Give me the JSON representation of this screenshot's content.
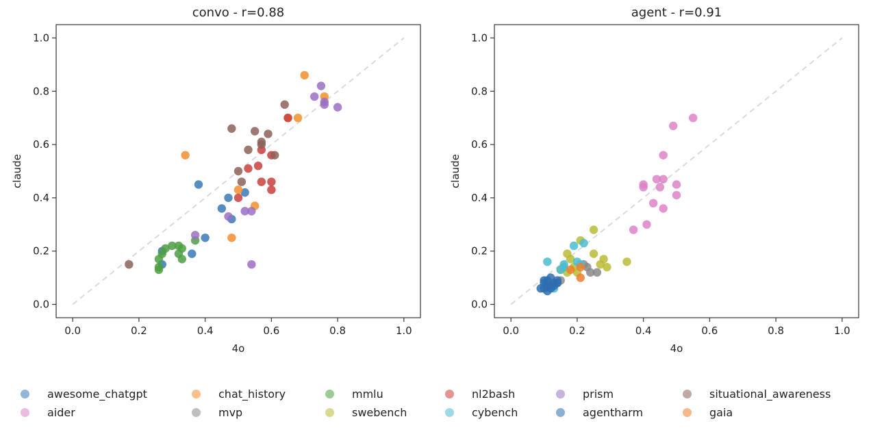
{
  "chart_data": [
    {
      "type": "scatter",
      "title": "convo - r=0.88",
      "xlabel": "4o",
      "ylabel": "claude",
      "xlim": [
        -0.05,
        1.05
      ],
      "ylim": [
        -0.05,
        1.05
      ],
      "xticks": [
        "0.0",
        "0.2",
        "0.4",
        "0.6",
        "0.8",
        "1.0"
      ],
      "yticks": [
        "0.0",
        "0.2",
        "0.4",
        "0.6",
        "0.8",
        "1.0"
      ],
      "reference_line": {
        "from": [
          0,
          0
        ],
        "to": [
          1,
          1
        ],
        "style": "dashed",
        "color": "#d9d9d9"
      },
      "grid": false,
      "series": [
        {
          "name": "awesome_chatgpt",
          "color": "#3a7ab7",
          "points": [
            [
              0.38,
              0.45
            ],
            [
              0.47,
              0.4
            ],
            [
              0.45,
              0.36
            ],
            [
              0.52,
              0.42
            ],
            [
              0.48,
              0.32
            ],
            [
              0.4,
              0.25
            ],
            [
              0.36,
              0.19
            ],
            [
              0.27,
              0.15
            ],
            [
              0.27,
              0.2
            ]
          ]
        },
        {
          "name": "chat_history",
          "color": "#f28e2b",
          "points": [
            [
              0.34,
              0.56
            ],
            [
              0.7,
              0.86
            ],
            [
              0.76,
              0.78
            ],
            [
              0.68,
              0.7
            ],
            [
              0.65,
              0.7
            ],
            [
              0.5,
              0.43
            ],
            [
              0.55,
              0.37
            ],
            [
              0.48,
              0.25
            ]
          ]
        },
        {
          "name": "mmlu",
          "color": "#4e9f43",
          "points": [
            [
              0.26,
              0.14
            ],
            [
              0.26,
              0.17
            ],
            [
              0.27,
              0.19
            ],
            [
              0.28,
              0.21
            ],
            [
              0.3,
              0.22
            ],
            [
              0.32,
              0.22
            ],
            [
              0.33,
              0.21
            ],
            [
              0.32,
              0.19
            ],
            [
              0.33,
              0.17
            ],
            [
              0.37,
              0.24
            ],
            [
              0.26,
              0.13
            ]
          ]
        },
        {
          "name": "nl2bash",
          "color": "#c9403c",
          "points": [
            [
              0.65,
              0.7
            ],
            [
              0.57,
              0.58
            ],
            [
              0.6,
              0.56
            ],
            [
              0.53,
              0.51
            ],
            [
              0.56,
              0.52
            ],
            [
              0.57,
              0.46
            ],
            [
              0.6,
              0.46
            ],
            [
              0.6,
              0.43
            ],
            [
              0.5,
              0.4
            ]
          ]
        },
        {
          "name": "prism",
          "color": "#9b6fc4",
          "points": [
            [
              0.75,
              0.82
            ],
            [
              0.73,
              0.78
            ],
            [
              0.76,
              0.76
            ],
            [
              0.76,
              0.75
            ],
            [
              0.8,
              0.74
            ],
            [
              0.52,
              0.35
            ],
            [
              0.54,
              0.35
            ],
            [
              0.47,
              0.33
            ],
            [
              0.37,
              0.26
            ],
            [
              0.54,
              0.15
            ]
          ]
        },
        {
          "name": "situational_awareness",
          "color": "#8c6258",
          "points": [
            [
              0.64,
              0.75
            ],
            [
              0.48,
              0.66
            ],
            [
              0.55,
              0.65
            ],
            [
              0.59,
              0.64
            ],
            [
              0.57,
              0.61
            ],
            [
              0.57,
              0.6
            ],
            [
              0.53,
              0.58
            ],
            [
              0.61,
              0.56
            ],
            [
              0.5,
              0.5
            ],
            [
              0.51,
              0.46
            ],
            [
              0.17,
              0.15
            ]
          ]
        }
      ]
    },
    {
      "type": "scatter",
      "title": "agent - r=0.91",
      "xlabel": "4o",
      "ylabel": "claude",
      "xlim": [
        -0.05,
        1.05
      ],
      "ylim": [
        -0.05,
        1.05
      ],
      "xticks": [
        "0.0",
        "0.2",
        "0.4",
        "0.6",
        "0.8",
        "1.0"
      ],
      "yticks": [
        "0.0",
        "0.2",
        "0.4",
        "0.6",
        "0.8",
        "1.0"
      ],
      "reference_line": {
        "from": [
          0,
          0
        ],
        "to": [
          1,
          1
        ],
        "style": "dashed",
        "color": "#d9d9d9"
      },
      "grid": false,
      "series": [
        {
          "name": "aider",
          "color": "#dd83c6",
          "points": [
            [
              0.55,
              0.7
            ],
            [
              0.49,
              0.67
            ],
            [
              0.46,
              0.56
            ],
            [
              0.44,
              0.47
            ],
            [
              0.46,
              0.47
            ],
            [
              0.4,
              0.44
            ],
            [
              0.4,
              0.45
            ],
            [
              0.45,
              0.44
            ],
            [
              0.5,
              0.45
            ],
            [
              0.43,
              0.38
            ],
            [
              0.5,
              0.41
            ],
            [
              0.46,
              0.36
            ],
            [
              0.41,
              0.3
            ],
            [
              0.37,
              0.28
            ]
          ]
        },
        {
          "name": "mvp",
          "color": "#8a8a8a",
          "points": [
            [
              0.23,
              0.14
            ],
            [
              0.26,
              0.12
            ],
            [
              0.24,
              0.12
            ],
            [
              0.22,
              0.15
            ],
            [
              0.15,
              0.09
            ],
            [
              0.14,
              0.08
            ]
          ]
        },
        {
          "name": "swebench",
          "color": "#b8bb36",
          "points": [
            [
              0.25,
              0.28
            ],
            [
              0.21,
              0.24
            ],
            [
              0.17,
              0.19
            ],
            [
              0.18,
              0.17
            ],
            [
              0.25,
              0.19
            ],
            [
              0.28,
              0.17
            ],
            [
              0.35,
              0.16
            ],
            [
              0.27,
              0.15
            ],
            [
              0.29,
              0.14
            ],
            [
              0.15,
              0.13
            ],
            [
              0.17,
              0.12
            ],
            [
              0.2,
              0.12
            ],
            [
              0.19,
              0.14
            ],
            [
              0.16,
              0.14
            ]
          ]
        },
        {
          "name": "cybench",
          "color": "#4bbcd2",
          "points": [
            [
              0.22,
              0.23
            ],
            [
              0.19,
              0.22
            ],
            [
              0.11,
              0.16
            ],
            [
              0.16,
              0.15
            ],
            [
              0.15,
              0.13
            ],
            [
              0.2,
              0.16
            ],
            [
              0.21,
              0.15
            ],
            [
              0.13,
              0.06
            ],
            [
              0.16,
              0.14
            ]
          ]
        },
        {
          "name": "agentharm",
          "color": "#2e6fb0",
          "points": [
            [
              0.1,
              0.08
            ],
            [
              0.11,
              0.09
            ],
            [
              0.12,
              0.1
            ],
            [
              0.13,
              0.08
            ],
            [
              0.14,
              0.09
            ],
            [
              0.11,
              0.07
            ],
            [
              0.12,
              0.07
            ],
            [
              0.1,
              0.06
            ],
            [
              0.09,
              0.06
            ],
            [
              0.12,
              0.06
            ],
            [
              0.13,
              0.07
            ],
            [
              0.14,
              0.08
            ],
            [
              0.1,
              0.09
            ],
            [
              0.11,
              0.05
            ]
          ]
        },
        {
          "name": "gaia",
          "color": "#ee7f2d",
          "points": [
            [
              0.18,
              0.13
            ],
            [
              0.21,
              0.14
            ],
            [
              0.21,
              0.1
            ]
          ]
        }
      ]
    }
  ],
  "legend": {
    "placement": "bottom",
    "items": [
      {
        "label": "awesome_chatgpt",
        "color": "#3a7ab7"
      },
      {
        "label": "chat_history",
        "color": "#f28e2b"
      },
      {
        "label": "mmlu",
        "color": "#4e9f43"
      },
      {
        "label": "nl2bash",
        "color": "#c9403c"
      },
      {
        "label": "prism",
        "color": "#9b6fc4"
      },
      {
        "label": "situational_awareness",
        "color": "#8c6258"
      },
      {
        "label": "aider",
        "color": "#dd83c6"
      },
      {
        "label": "mvp",
        "color": "#8a8a8a"
      },
      {
        "label": "swebench",
        "color": "#b8bb36"
      },
      {
        "label": "cybench",
        "color": "#4bbcd2"
      },
      {
        "label": "agentharm",
        "color": "#2e6fb0"
      },
      {
        "label": "gaia",
        "color": "#ee7f2d"
      }
    ]
  }
}
